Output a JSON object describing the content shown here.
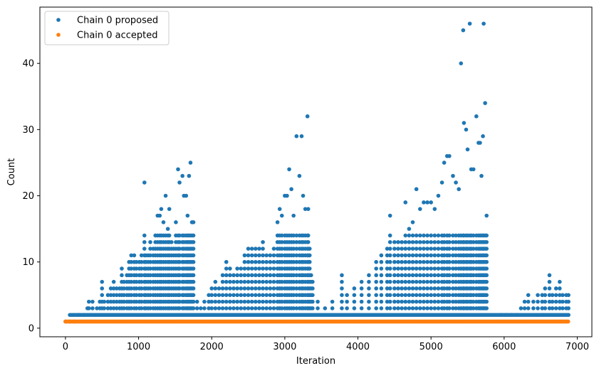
{
  "chart_data": {
    "type": "scatter",
    "title": "",
    "xlabel": "Iteration",
    "ylabel": "Count",
    "xlim": [
      -350,
      7200
    ],
    "ylim": [
      -1.3,
      48.5
    ],
    "xticks": [
      0,
      1000,
      2000,
      3000,
      4000,
      5000,
      6000,
      7000
    ],
    "yticks": [
      0,
      10,
      20,
      30,
      40
    ],
    "grid": false,
    "legend_position": "top-left",
    "series": [
      {
        "name": "Chain 0 proposed",
        "color": "#1f77b4",
        "x_range": [
          0,
          6880
        ],
        "baseline_value": 2,
        "points": [
          [
            0,
            1
          ],
          [
            60,
            1
          ],
          [
            120,
            1
          ],
          [
            180,
            2
          ],
          [
            250,
            2
          ],
          [
            300,
            3
          ],
          [
            320,
            4
          ],
          [
            370,
            4
          ],
          [
            430,
            3
          ],
          [
            470,
            4
          ],
          [
            500,
            7
          ],
          [
            530,
            4
          ],
          [
            580,
            5
          ],
          [
            620,
            6
          ],
          [
            660,
            7
          ],
          [
            700,
            6
          ],
          [
            740,
            6
          ],
          [
            770,
            9
          ],
          [
            800,
            7
          ],
          [
            840,
            8
          ],
          [
            870,
            10
          ],
          [
            900,
            11
          ],
          [
            940,
            11
          ],
          [
            970,
            10
          ],
          [
            1010,
            10
          ],
          [
            1040,
            11
          ],
          [
            1080,
            22
          ],
          [
            1100,
            11
          ],
          [
            1130,
            11
          ],
          [
            1160,
            13
          ],
          [
            1200,
            12
          ],
          [
            1230,
            14
          ],
          [
            1260,
            17
          ],
          [
            1290,
            17
          ],
          [
            1310,
            18
          ],
          [
            1340,
            16
          ],
          [
            1370,
            20
          ],
          [
            1400,
            15
          ],
          [
            1420,
            18
          ],
          [
            1450,
            13
          ],
          [
            1480,
            12
          ],
          [
            1510,
            16
          ],
          [
            1540,
            24
          ],
          [
            1560,
            22
          ],
          [
            1600,
            23
          ],
          [
            1620,
            20
          ],
          [
            1650,
            20
          ],
          [
            1670,
            17
          ],
          [
            1690,
            23
          ],
          [
            1710,
            25
          ],
          [
            1730,
            16
          ],
          [
            1750,
            16
          ],
          [
            1800,
            4
          ],
          [
            1850,
            3
          ],
          [
            1900,
            4
          ],
          [
            1960,
            5
          ],
          [
            2000,
            6
          ],
          [
            2050,
            7
          ],
          [
            2100,
            6
          ],
          [
            2150,
            8
          ],
          [
            2200,
            10
          ],
          [
            2250,
            9
          ],
          [
            2300,
            8
          ],
          [
            2350,
            9
          ],
          [
            2400,
            9
          ],
          [
            2450,
            11
          ],
          [
            2500,
            12
          ],
          [
            2550,
            12
          ],
          [
            2600,
            12
          ],
          [
            2650,
            12
          ],
          [
            2700,
            13
          ],
          [
            2750,
            11
          ],
          [
            2800,
            11
          ],
          [
            2850,
            12
          ],
          [
            2900,
            16
          ],
          [
            2930,
            18
          ],
          [
            2960,
            17
          ],
          [
            3000,
            20
          ],
          [
            3030,
            20
          ],
          [
            3060,
            24
          ],
          [
            3090,
            21
          ],
          [
            3120,
            17
          ],
          [
            3160,
            29
          ],
          [
            3200,
            23
          ],
          [
            3230,
            29
          ],
          [
            3250,
            20
          ],
          [
            3280,
            18
          ],
          [
            3310,
            32
          ],
          [
            3320,
            18
          ],
          [
            3340,
            12
          ],
          [
            3360,
            8
          ],
          [
            3380,
            7
          ],
          [
            3450,
            4
          ],
          [
            3550,
            3
          ],
          [
            3650,
            4
          ],
          [
            3780,
            8
          ],
          [
            3850,
            5
          ],
          [
            3950,
            6
          ],
          [
            4050,
            7
          ],
          [
            4150,
            8
          ],
          [
            4250,
            10
          ],
          [
            4320,
            11
          ],
          [
            4400,
            12
          ],
          [
            4440,
            17
          ],
          [
            4500,
            13
          ],
          [
            4550,
            13
          ],
          [
            4600,
            13
          ],
          [
            4650,
            19
          ],
          [
            4700,
            15
          ],
          [
            4750,
            16
          ],
          [
            4800,
            21
          ],
          [
            4850,
            18
          ],
          [
            4900,
            19
          ],
          [
            4950,
            19
          ],
          [
            5000,
            19
          ],
          [
            5050,
            18
          ],
          [
            5100,
            20
          ],
          [
            5150,
            22
          ],
          [
            5180,
            25
          ],
          [
            5220,
            26
          ],
          [
            5250,
            26
          ],
          [
            5300,
            23
          ],
          [
            5340,
            22
          ],
          [
            5380,
            21
          ],
          [
            5410,
            40
          ],
          [
            5440,
            45
          ],
          [
            5450,
            31
          ],
          [
            5480,
            30
          ],
          [
            5500,
            27
          ],
          [
            5530,
            46
          ],
          [
            5550,
            24
          ],
          [
            5580,
            24
          ],
          [
            5620,
            32
          ],
          [
            5650,
            28
          ],
          [
            5670,
            28
          ],
          [
            5690,
            23
          ],
          [
            5710,
            29
          ],
          [
            5720,
            46
          ],
          [
            5740,
            34
          ],
          [
            5760,
            17
          ],
          [
            5960,
            2
          ],
          [
            6030,
            2
          ],
          [
            6100,
            2
          ],
          [
            6170,
            2
          ],
          [
            6230,
            3
          ],
          [
            6280,
            4
          ],
          [
            6330,
            5
          ],
          [
            6400,
            4
          ],
          [
            6460,
            5
          ],
          [
            6520,
            5
          ],
          [
            6560,
            6
          ],
          [
            6620,
            8
          ],
          [
            6660,
            5
          ],
          [
            6710,
            6
          ],
          [
            6760,
            7
          ],
          [
            6800,
            5
          ],
          [
            6850,
            5
          ],
          [
            6880,
            5
          ]
        ]
      },
      {
        "name": "Chain 0 accepted",
        "color": "#ff7f0e",
        "x_range": [
          0,
          6880
        ],
        "value": 1
      }
    ]
  }
}
